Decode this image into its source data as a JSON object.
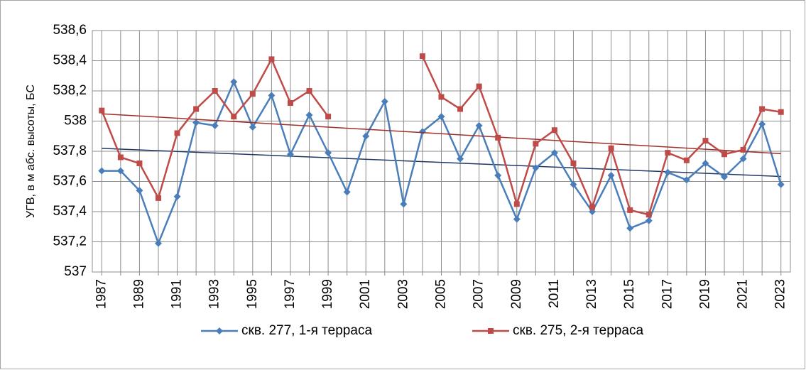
{
  "chart_data": {
    "type": "line",
    "y_label": "УГВ, в м абс. высоты, БС",
    "categories": [
      "1987",
      null,
      "1989",
      null,
      "1991",
      null,
      "1993",
      null,
      "1995",
      null,
      "1997",
      null,
      "1999",
      null,
      "2001",
      null,
      "2003",
      null,
      "2005",
      null,
      "2007",
      null,
      "2009",
      null,
      "2011",
      null,
      "2013",
      null,
      "2015",
      null,
      "2017",
      null,
      "2019",
      null,
      "2021",
      null,
      "2023"
    ],
    "series": [
      {
        "name": "скв. 277, 1-я терраса",
        "color": "#4a7ebb",
        "marker": "diamond",
        "trendline": true,
        "trendline_color": "#1f3864",
        "values": [
          537.67,
          537.67,
          537.54,
          537.19,
          537.5,
          537.99,
          537.97,
          538.26,
          537.96,
          538.17,
          537.78,
          538.04,
          537.79,
          537.53,
          537.9,
          538.13,
          537.45,
          537.93,
          538.03,
          537.75,
          537.97,
          537.64,
          537.35,
          537.69,
          537.79,
          537.58,
          537.4,
          537.64,
          537.29,
          537.34,
          537.66,
          537.61,
          537.72,
          537.63,
          537.75,
          537.98,
          537.58
        ]
      },
      {
        "name": "скв. 275, 2-я терраса",
        "color": "#be4b48",
        "marker": "square",
        "trendline": true,
        "trendline_color": "#a0302b",
        "values": [
          538.07,
          537.76,
          537.72,
          537.49,
          537.92,
          538.08,
          538.2,
          538.03,
          538.18,
          538.41,
          538.12,
          538.2,
          538.03,
          null,
          null,
          null,
          null,
          538.43,
          538.16,
          538.08,
          538.23,
          537.89,
          537.45,
          537.85,
          537.94,
          537.72,
          537.43,
          537.82,
          537.41,
          537.38,
          537.79,
          537.74,
          537.87,
          537.78,
          537.81,
          538.08,
          538.06
        ]
      }
    ],
    "ylim": [
      537,
      538.6
    ],
    "yticks": [
      537,
      {
        "value": 537.2,
        "label": "537,2"
      },
      {
        "value": 537.4,
        "label": "537,4"
      },
      {
        "value": 537.6,
        "label": "537,6"
      },
      {
        "value": 537.8,
        "label": "537,8"
      },
      538,
      {
        "value": 538.2,
        "label": "538,2"
      },
      {
        "value": 538.4,
        "label": "538,4"
      },
      {
        "value": 538.6,
        "label": "538,6"
      }
    ],
    "grid": true,
    "legend": "bottom"
  }
}
